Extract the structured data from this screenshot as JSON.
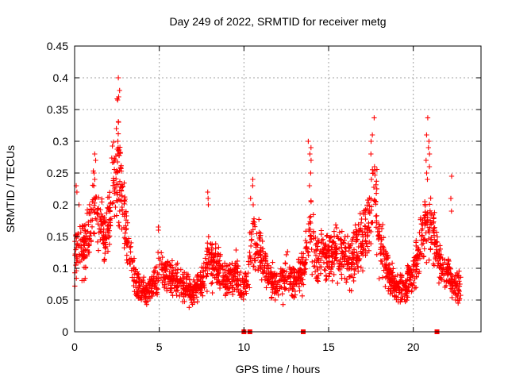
{
  "chart_data": {
    "type": "scatter",
    "title": "Day 249 of 2022, SRMTID for receiver metg",
    "xlabel": "GPS time / hours",
    "ylabel": "SRMTID / TECUs",
    "xlim": [
      0,
      24
    ],
    "ylim": [
      0,
      0.45
    ],
    "xticks": [
      0,
      5,
      10,
      15,
      20
    ],
    "xtick_labels": [
      "0",
      "5",
      "10",
      "15",
      "20"
    ],
    "yticks": [
      0,
      0.05,
      0.1,
      0.15,
      0.2,
      0.25,
      0.3,
      0.35,
      0.4,
      0.45
    ],
    "ytick_labels": [
      "0",
      "0.05",
      "0.1",
      "0.15",
      "0.2",
      "0.25",
      "0.3",
      "0.35",
      "0.4",
      "0.45"
    ],
    "grid": true,
    "marker": "plus",
    "color": "#ff0000",
    "series": [
      {
        "name": "SRMTID",
        "profile_x": [
          0,
          0.3,
          0.6,
          1.0,
          1.3,
          1.7,
          2.0,
          2.4,
          2.8,
          3.1,
          3.5,
          3.8,
          4.2,
          4.6,
          5.0,
          5.5,
          6.0,
          6.5,
          7.0,
          7.5,
          8.0,
          8.5,
          9.0,
          9.5,
          10.0,
          10.3,
          10.6,
          11.0,
          11.5,
          12.0,
          12.5,
          13.0,
          13.5,
          13.9,
          14.3,
          14.8,
          15.3,
          15.8,
          16.3,
          16.8,
          17.3,
          17.7,
          18.0,
          18.5,
          19.0,
          19.5,
          20.0,
          20.5,
          20.9,
          21.3,
          21.7,
          22.0,
          22.4,
          22.8
        ],
        "profile_y": [
          0.11,
          0.14,
          0.12,
          0.18,
          0.2,
          0.15,
          0.17,
          0.26,
          0.22,
          0.14,
          0.1,
          0.07,
          0.06,
          0.07,
          0.1,
          0.09,
          0.08,
          0.07,
          0.06,
          0.08,
          0.12,
          0.1,
          0.08,
          0.09,
          0.07,
          0.1,
          0.15,
          0.12,
          0.09,
          0.07,
          0.09,
          0.08,
          0.1,
          0.16,
          0.12,
          0.11,
          0.13,
          0.12,
          0.11,
          0.14,
          0.16,
          0.22,
          0.14,
          0.09,
          0.07,
          0.07,
          0.09,
          0.15,
          0.18,
          0.14,
          0.1,
          0.09,
          0.07,
          0.07
        ],
        "peaks": [
          {
            "x": 2.55,
            "values": [
              0.4,
              0.38,
              0.37,
              0.365,
              0.33,
              0.32,
              0.3,
              0.29,
              0.28
            ]
          },
          {
            "x": 1.25,
            "values": [
              0.28,
              0.27,
              0.25,
              0.24,
              0.23
            ]
          },
          {
            "x": 0.2,
            "values": [
              0.23,
              0.22,
              0.2
            ]
          },
          {
            "x": 10.5,
            "values": [
              0.24,
              0.23,
              0.21,
              0.2
            ]
          },
          {
            "x": 13.9,
            "values": [
              0.3,
              0.29,
              0.28,
              0.27,
              0.25,
              0.23
            ]
          },
          {
            "x": 17.6,
            "values": [
              0.337,
              0.31,
              0.3,
              0.28,
              0.26,
              0.25,
              0.24
            ]
          },
          {
            "x": 20.85,
            "values": [
              0.337,
              0.31,
              0.3,
              0.29,
              0.28,
              0.27,
              0.26,
              0.25,
              0.24
            ]
          },
          {
            "x": 22.3,
            "values": [
              0.245,
              0.21,
              0.19
            ]
          },
          {
            "x": 7.95,
            "values": [
              0.22,
              0.21,
              0.2
            ]
          },
          {
            "x": 5.0,
            "values": [
              0.165,
              0.16
            ]
          }
        ],
        "zero_markers_x": [
          10.0,
          10.35,
          13.5,
          21.4
        ],
        "n_points": 2200
      }
    ]
  }
}
